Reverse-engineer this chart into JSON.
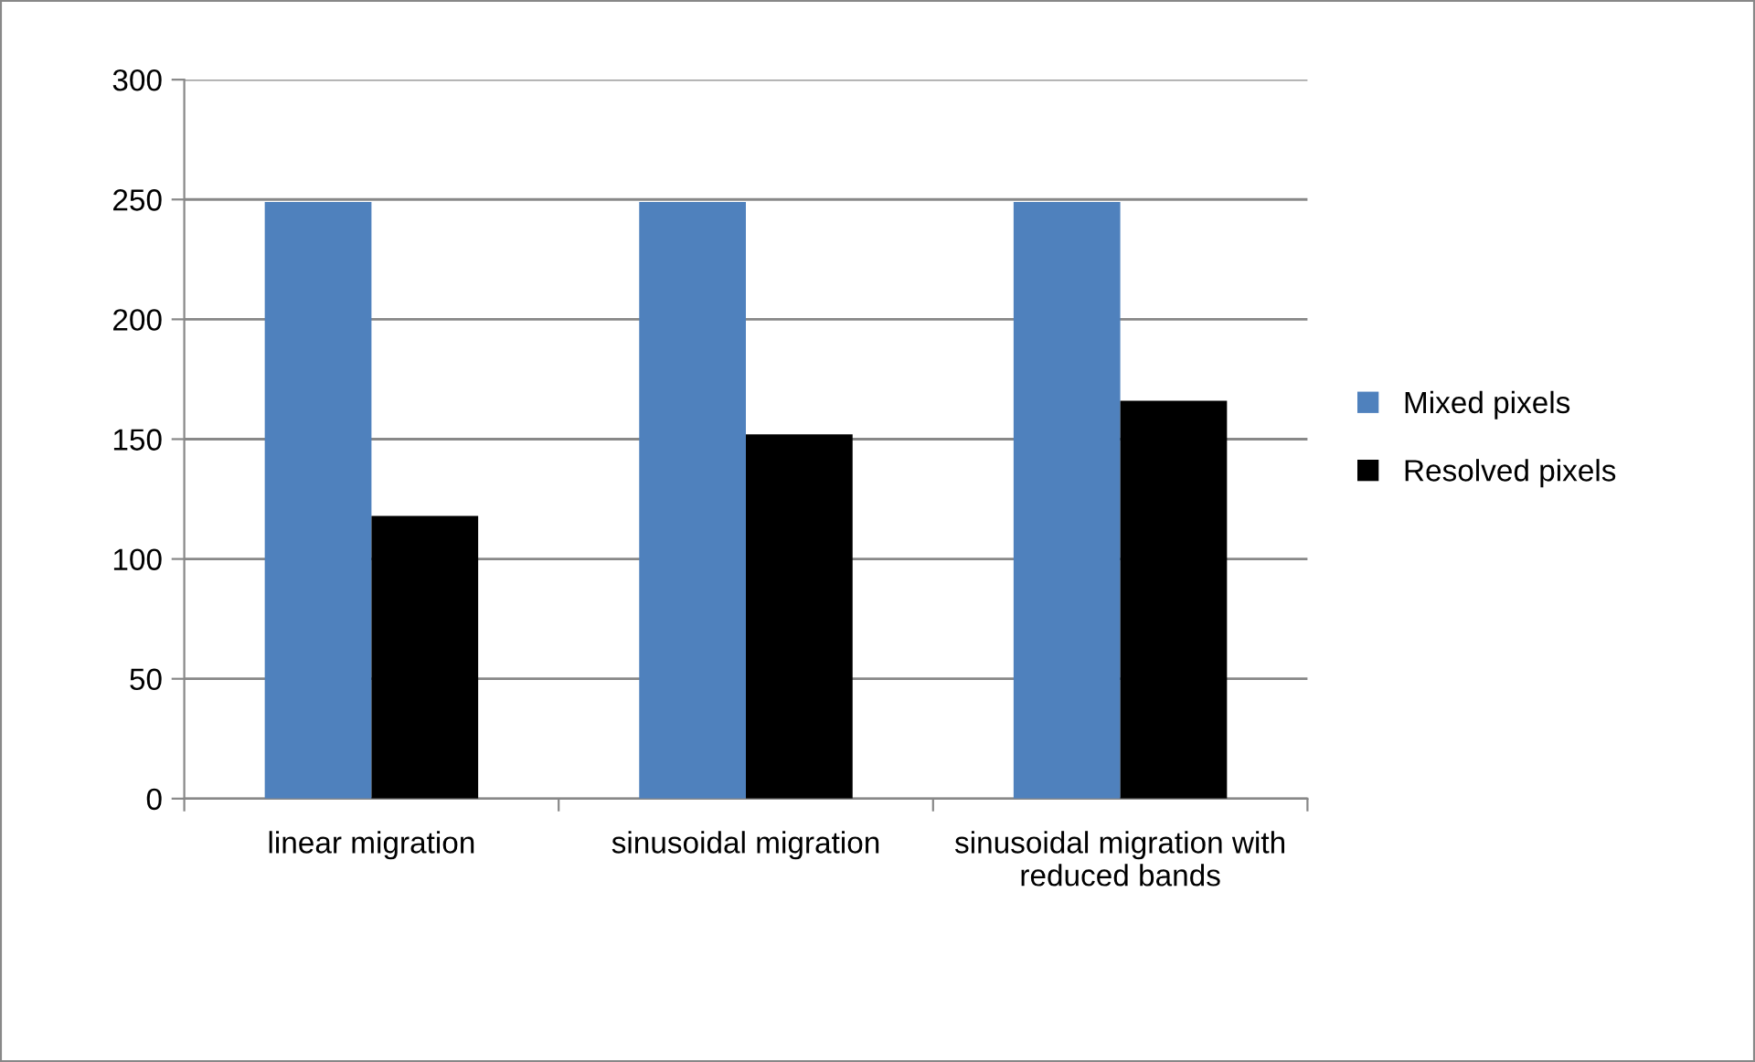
{
  "chart_data": {
    "type": "bar",
    "categories": [
      "linear migration",
      "sinusoidal migration",
      "sinusoidal migration with reduced bands"
    ],
    "series": [
      {
        "name": "Mixed pixels",
        "color": "#4f81bd",
        "values": [
          249,
          249,
          249
        ]
      },
      {
        "name": "Resolved pixels",
        "color": "#000000",
        "values": [
          118,
          152,
          166
        ]
      }
    ],
    "ylim": [
      0,
      300
    ],
    "yticks": [
      0,
      50,
      100,
      150,
      200,
      250,
      300
    ],
    "grid": "y",
    "legend": "right"
  }
}
